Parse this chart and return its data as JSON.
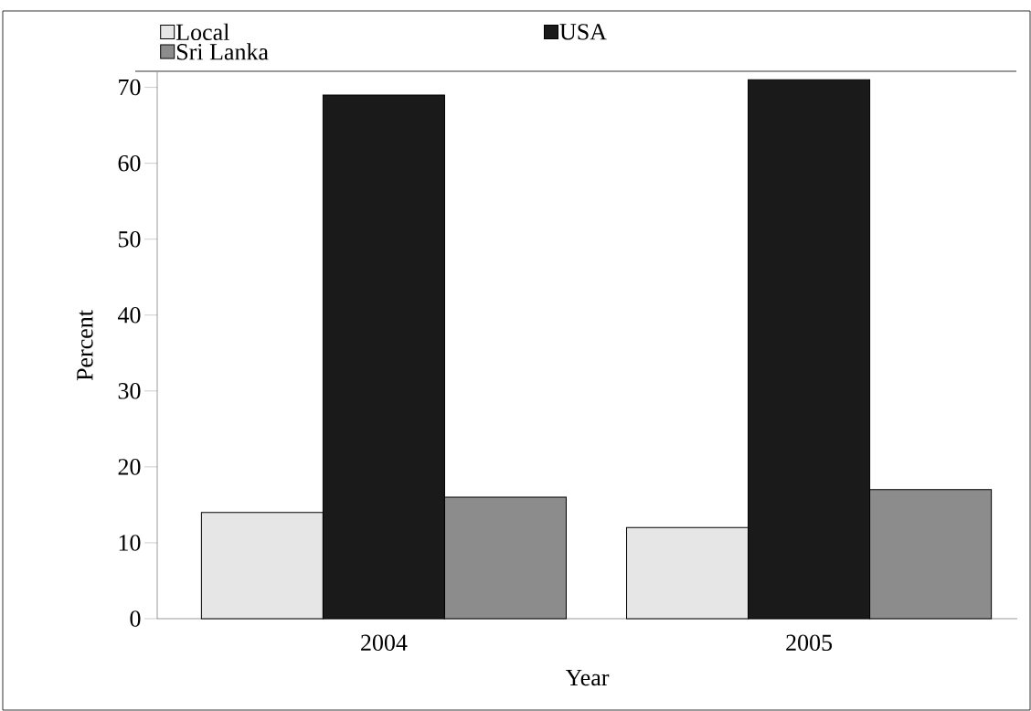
{
  "chart_data": {
    "type": "bar",
    "xlabel": "Year",
    "ylabel": "Percent",
    "categories": [
      "2004",
      "2005"
    ],
    "series": [
      {
        "name": "Local",
        "color": "#e6e6e6",
        "values": [
          14,
          12
        ]
      },
      {
        "name": "USA",
        "color": "#1a1a1a",
        "values": [
          69,
          71
        ]
      },
      {
        "name": "Sri Lanka",
        "color": "#8c8c8c",
        "values": [
          16,
          17
        ]
      }
    ],
    "ylim": [
      0,
      72
    ],
    "yticks": [
      0,
      10,
      20,
      30,
      40,
      50,
      60,
      70
    ],
    "legend": "top",
    "grid": false
  }
}
